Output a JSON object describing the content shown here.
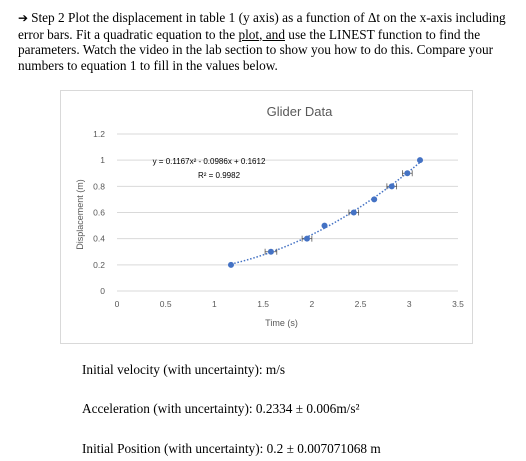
{
  "instructions": {
    "part1": "Step 2 Plot the displacement in table 1 (y axis) as a function of Δt on the x-axis including error bars. Fit a quadratic equation to the ",
    "underlined": "plot, and",
    "part2": " use the LINEST function to find the parameters. Watch the video in the lab section to show you how to do this. Compare your numbers to equation 1 to fill in the values below."
  },
  "answers": {
    "initial_velocity": "Initial velocity (with uncertainty): m/s",
    "acceleration": "Acceleration (with uncertainty): 0.2334 ± 0.006m/s²",
    "initial_position": "Initial Position (with uncertainty): 0.2 ± 0.007071068 m"
  },
  "chart_data": {
    "type": "scatter",
    "title": "Glider Data",
    "xlabel": "Time (s)",
    "ylabel": "Displacement (m)",
    "xlim": [
      0,
      3.5
    ],
    "ylim": [
      0,
      1.2
    ],
    "x_ticks": [
      "0",
      "0.5",
      "1",
      "1.5",
      "2",
      "2.5",
      "3",
      "3.5"
    ],
    "y_ticks": [
      "0",
      "0.2",
      "0.4",
      "0.6",
      "0.8",
      "1",
      "1.2"
    ],
    "x_tick_values": [
      0,
      0.5,
      1,
      1.5,
      2,
      2.5,
      3,
      3.5
    ],
    "y_tick_values": [
      0,
      0.2,
      0.4,
      0.6,
      0.8,
      1,
      1.2
    ],
    "grid": true,
    "points": [
      {
        "x": 1.17,
        "y": 0.2,
        "xerr": 0
      },
      {
        "x": 1.58,
        "y": 0.3,
        "xerr": 0.06
      },
      {
        "x": 1.95,
        "y": 0.4,
        "xerr": 0.05
      },
      {
        "x": 2.13,
        "y": 0.5,
        "xerr": 0
      },
      {
        "x": 2.43,
        "y": 0.6,
        "xerr": 0.05
      },
      {
        "x": 2.64,
        "y": 0.7,
        "xerr": 0
      },
      {
        "x": 2.82,
        "y": 0.8,
        "xerr": 0.05
      },
      {
        "x": 2.98,
        "y": 0.9,
        "xerr": 0.05
      },
      {
        "x": 3.11,
        "y": 1.0,
        "xerr": 0
      }
    ],
    "trendline": {
      "type": "quadratic",
      "a": 0.1167,
      "b": -0.0986,
      "c": 0.1612,
      "x_from": 1.17,
      "x_to": 3.11
    },
    "equation": "y = 0.1167x² - 0.0986x + 0.1612",
    "r_squared": "R² = 0.9982",
    "colors": {
      "marker": "#4472c4",
      "errorbar": "#595959",
      "grid": "#d9d9d9",
      "text": "#595959"
    }
  }
}
